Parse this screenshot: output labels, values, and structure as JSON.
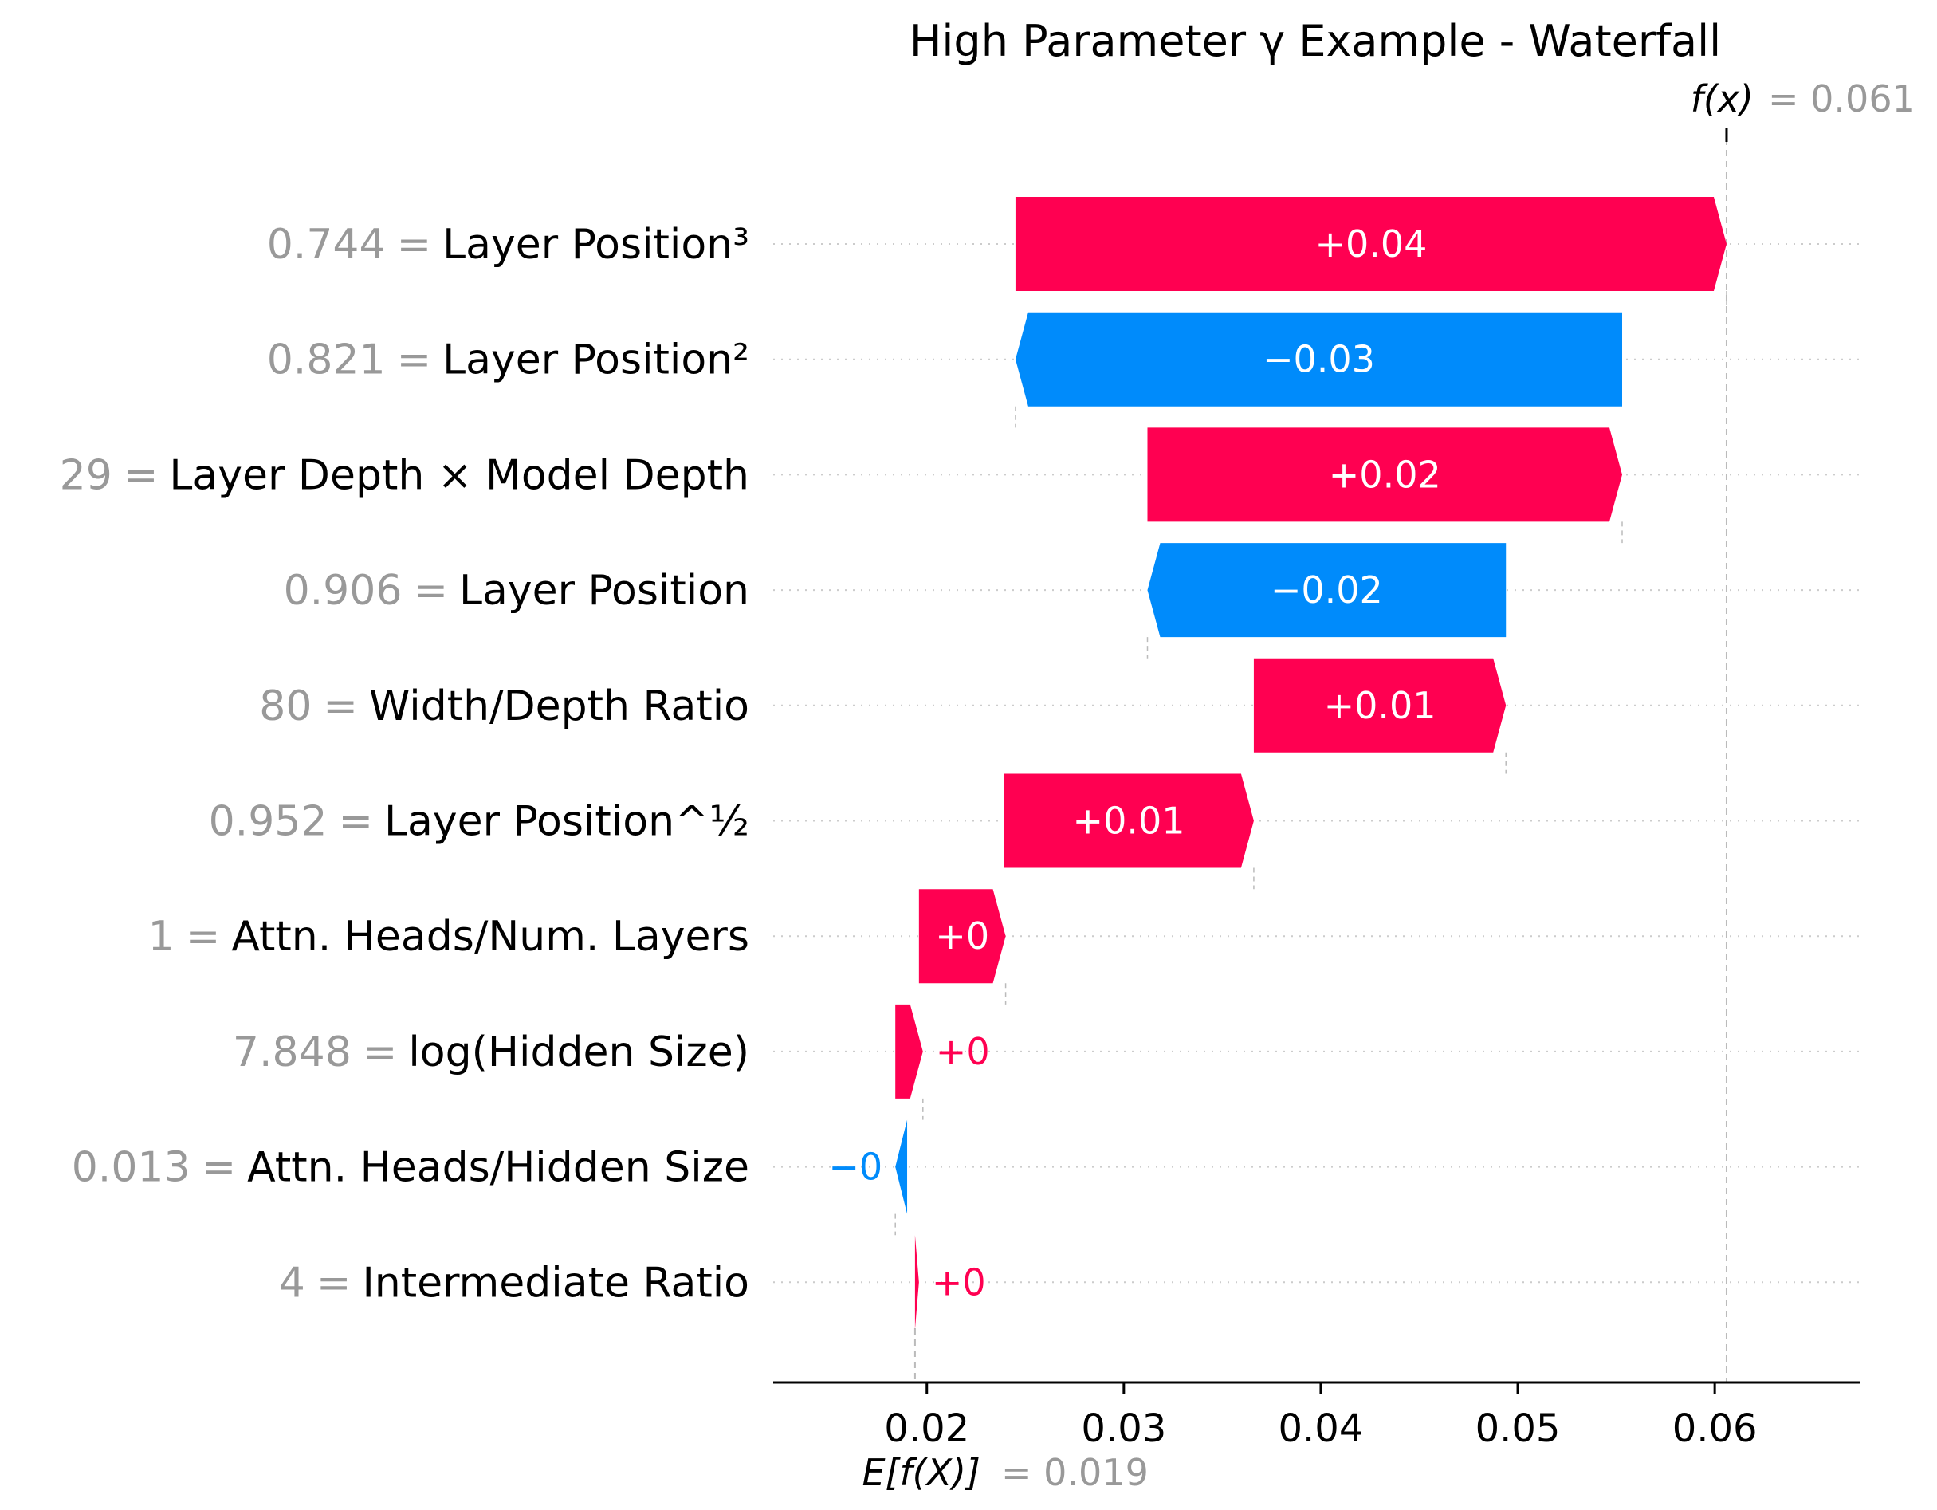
{
  "chart_data": {
    "type": "waterfall",
    "title": "High Parameter γ Example - Waterfall",
    "fx_label": "f(x)",
    "fx_value_text": "= 0.061",
    "fx_value": 0.0606,
    "ex_label": "E[f(X)]",
    "ex_value_text": "= 0.019",
    "ex_value": 0.0194,
    "xlim": [
      0.0122,
      0.0674
    ],
    "ticks": [
      {
        "value": 0.02,
        "label": "0.02"
      },
      {
        "value": 0.03,
        "label": "0.03"
      },
      {
        "value": 0.04,
        "label": "0.04"
      },
      {
        "value": 0.05,
        "label": "0.05"
      },
      {
        "value": 0.06,
        "label": "0.06"
      }
    ],
    "features": [
      {
        "value_text": "0.744",
        "eq": "=",
        "name": "Layer Position³",
        "start": 0.0245,
        "end": 0.0606,
        "label": "+0.04"
      },
      {
        "value_text": "0.821",
        "eq": "=",
        "name": "Layer Position²",
        "start": 0.0553,
        "end": 0.0245,
        "label": "−0.03"
      },
      {
        "value_text": "29",
        "eq": "=",
        "name": "Layer Depth × Model Depth",
        "start": 0.0312,
        "end": 0.0553,
        "label": "+0.02"
      },
      {
        "value_text": "0.906",
        "eq": "=",
        "name": "Layer Position",
        "start": 0.0494,
        "end": 0.0312,
        "label": "−0.02"
      },
      {
        "value_text": "80",
        "eq": "=",
        "name": "Width/Depth Ratio",
        "start": 0.0366,
        "end": 0.0494,
        "label": "+0.01"
      },
      {
        "value_text": "0.952",
        "eq": "=",
        "name": "Layer Position^½",
        "start": 0.0239,
        "end": 0.0366,
        "label": "+0.01"
      },
      {
        "value_text": "1",
        "eq": "=",
        "name": "Attn. Heads/Num. Layers",
        "start": 0.0196,
        "end": 0.024,
        "label": "+0"
      },
      {
        "value_text": "7.848",
        "eq": "=",
        "name": "log(Hidden Size)",
        "start": 0.0184,
        "end": 0.0198,
        "label": "+0"
      },
      {
        "value_text": "0.013",
        "eq": "=",
        "name": "Attn. Heads/Hidden Size",
        "start": 0.019,
        "end": 0.0184,
        "label": "−0"
      },
      {
        "value_text": "4",
        "eq": "=",
        "name": "Intermediate Ratio",
        "start": 0.0194,
        "end": 0.0196,
        "label": "+0"
      }
    ],
    "colors": {
      "positive": "#ff0051",
      "negative": "#008bfb",
      "muted": "#999999",
      "text": "#000000",
      "grid": "#cccccc"
    }
  }
}
